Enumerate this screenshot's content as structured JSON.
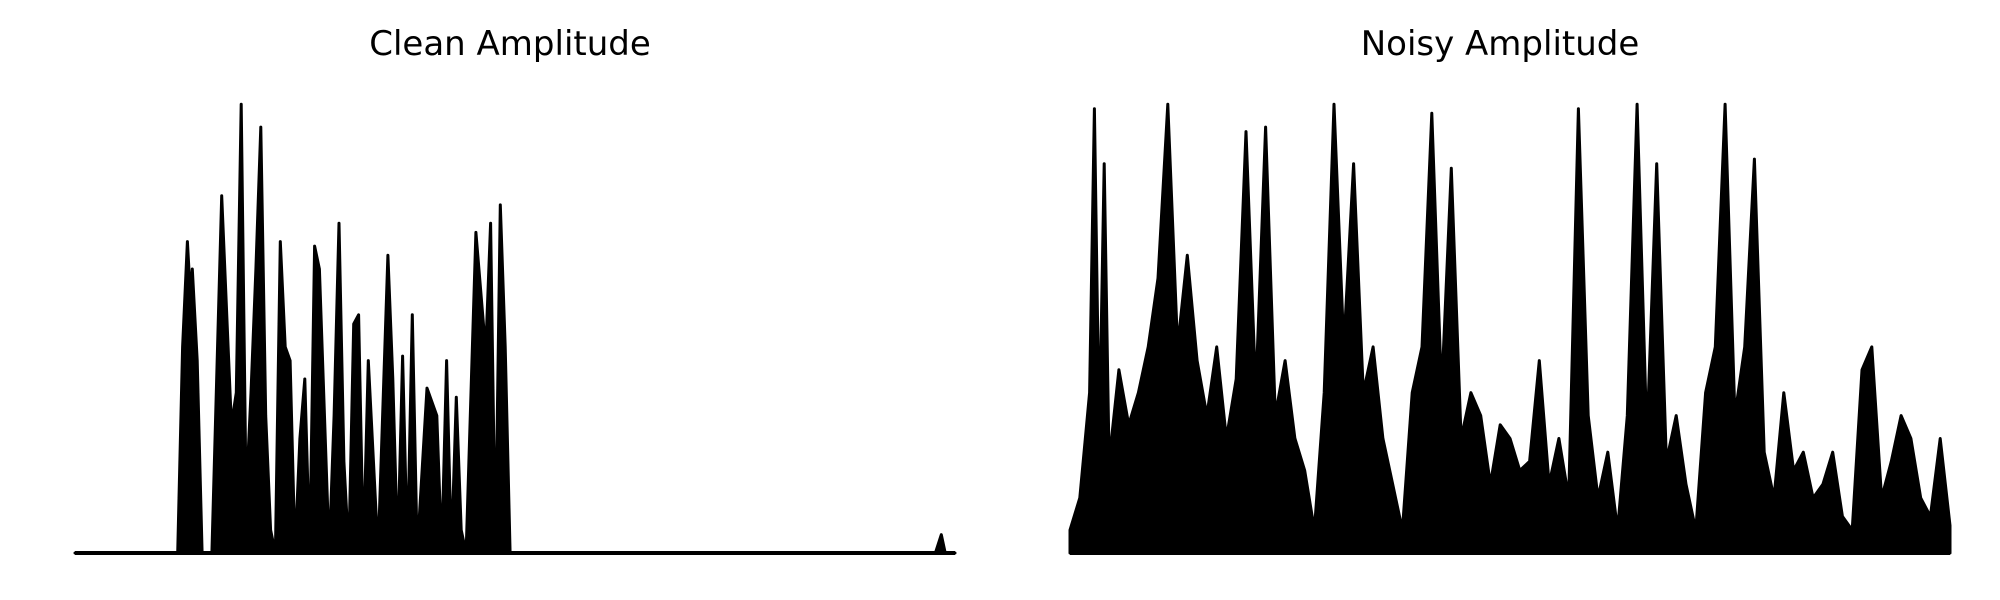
{
  "chart_data": [
    {
      "type": "line",
      "title": "Clean Amplitude",
      "xlabel": "",
      "ylabel": "",
      "axes_visible": false,
      "grid": false,
      "line_color": "#000000",
      "ylim": [
        0,
        1.0
      ],
      "x": [
        0,
        20,
        40,
        60,
        80,
        85,
        87,
        92,
        95,
        105,
        110,
        115,
        118,
        120,
        125,
        130,
        135,
        140,
        150,
        160,
        165,
        170,
        175,
        180,
        185,
        190,
        195,
        200,
        205,
        210,
        215,
        220,
        225,
        230,
        235,
        240,
        245,
        250,
        260,
        265,
        270,
        275,
        280,
        285,
        290,
        295,
        300,
        310,
        320,
        325,
        330,
        335,
        340,
        345,
        350,
        360,
        370,
        375,
        380,
        385,
        390,
        395,
        400,
        410,
        420,
        425,
        430,
        435,
        440,
        445,
        450,
        460,
        470,
        475,
        480,
        485,
        490,
        500,
        510,
        520,
        530,
        540,
        560,
        580,
        600,
        620,
        640,
        660,
        680,
        700,
        720,
        740,
        750,
        755,
        760,
        770,
        780,
        790,
        800,
        810,
        820,
        830,
        840,
        850,
        870,
        880,
        886,
        890,
        900
      ],
      "values": [
        0.0,
        0.0,
        0.0,
        0.0,
        0.0,
        0.0,
        0.0,
        0.0,
        0.0,
        0.0,
        0.45,
        0.68,
        0.56,
        0.62,
        0.42,
        0.0,
        0.0,
        0.0,
        0.78,
        0.28,
        0.35,
        0.98,
        0.12,
        0.35,
        0.62,
        0.93,
        0.3,
        0.05,
        0.0,
        0.68,
        0.45,
        0.42,
        0.0,
        0.25,
        0.38,
        0.0,
        0.67,
        0.62,
        0.0,
        0.3,
        0.72,
        0.2,
        0.0,
        0.5,
        0.52,
        0.0,
        0.42,
        0.0,
        0.65,
        0.38,
        0.0,
        0.43,
        0.0,
        0.52,
        0.0,
        0.36,
        0.3,
        0.0,
        0.42,
        0.0,
        0.34,
        0.05,
        0.0,
        0.7,
        0.44,
        0.72,
        0.0,
        0.76,
        0.45,
        0.0,
        0.0,
        0.0,
        0.0,
        0.0,
        0.0,
        0.0,
        0.0,
        0.0,
        0.0,
        0.0,
        0.0,
        0.0,
        0.0,
        0.0,
        0.0,
        0.0,
        0.0,
        0.0,
        0.0,
        0.0,
        0.0,
        0.0,
        0.0,
        0.0,
        0.0,
        0.0,
        0.0,
        0.0,
        0.0,
        0.0,
        0.0,
        0.0,
        0.0,
        0.0,
        0.0,
        0.0,
        0.04,
        0.0,
        0.0
      ]
    },
    {
      "type": "line",
      "title": "Noisy Amplitude",
      "xlabel": "",
      "ylabel": "",
      "axes_visible": false,
      "grid": false,
      "line_color": "#000000",
      "ylim": [
        0,
        1.0
      ],
      "x": [
        0,
        10,
        20,
        25,
        30,
        35,
        40,
        50,
        60,
        70,
        80,
        90,
        100,
        110,
        120,
        130,
        140,
        150,
        160,
        170,
        180,
        190,
        200,
        210,
        220,
        230,
        240,
        250,
        260,
        270,
        280,
        290,
        300,
        310,
        320,
        330,
        340,
        350,
        360,
        370,
        380,
        390,
        400,
        410,
        420,
        430,
        440,
        450,
        460,
        470,
        480,
        490,
        500,
        510,
        520,
        530,
        540,
        550,
        560,
        570,
        580,
        590,
        600,
        610,
        620,
        630,
        640,
        650,
        660,
        670,
        680,
        690,
        700,
        710,
        720,
        730,
        740,
        750,
        760,
        770,
        780,
        790,
        800,
        810,
        820,
        830,
        840,
        850,
        860,
        870,
        880,
        890,
        900
      ],
      "values": [
        0.05,
        0.12,
        0.35,
        0.97,
        0.25,
        0.85,
        0.2,
        0.4,
        0.28,
        0.35,
        0.45,
        0.6,
        0.98,
        0.45,
        0.65,
        0.42,
        0.3,
        0.45,
        0.25,
        0.38,
        0.92,
        0.35,
        0.93,
        0.3,
        0.42,
        0.25,
        0.18,
        0.05,
        0.35,
        0.98,
        0.45,
        0.85,
        0.35,
        0.45,
        0.25,
        0.15,
        0.05,
        0.35,
        0.45,
        0.96,
        0.35,
        0.84,
        0.25,
        0.35,
        0.3,
        0.15,
        0.28,
        0.25,
        0.18,
        0.2,
        0.42,
        0.15,
        0.25,
        0.12,
        0.97,
        0.3,
        0.12,
        0.22,
        0.05,
        0.3,
        0.98,
        0.25,
        0.85,
        0.2,
        0.3,
        0.15,
        0.05,
        0.35,
        0.45,
        0.98,
        0.3,
        0.45,
        0.86,
        0.22,
        0.12,
        0.35,
        0.18,
        0.22,
        0.12,
        0.15,
        0.22,
        0.08,
        0.05,
        0.4,
        0.45,
        0.12,
        0.2,
        0.3,
        0.25,
        0.12,
        0.08,
        0.25,
        0.06
      ]
    }
  ]
}
